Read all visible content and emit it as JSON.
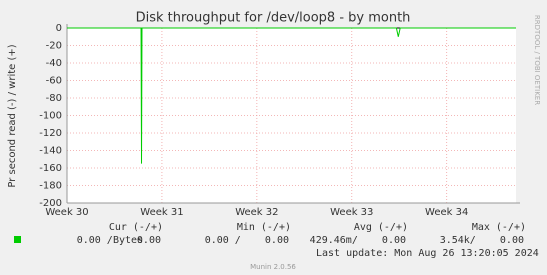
{
  "chart_data": {
    "type": "line",
    "title": "Disk throughput for /dev/loop8 - by month",
    "y_label": "Pr second read (-) / write (+)",
    "side_text": "RRDTOOL / TOBI OETIKER",
    "x": [
      30,
      30.78,
      30.785,
      30.79,
      33.47,
      33.49,
      33.51,
      34.73
    ],
    "series": [
      {
        "name": "Bytes",
        "color": "#00cc00",
        "values": [
          0,
          0,
          -155,
          0,
          0,
          -10,
          0,
          0
        ]
      }
    ],
    "xlim": [
      30,
      34.73
    ],
    "xticks": [
      {
        "value": 30,
        "label": "Week 30"
      },
      {
        "value": 31,
        "label": "Week 31"
      },
      {
        "value": 32,
        "label": "Week 32"
      },
      {
        "value": 33,
        "label": "Week 33"
      },
      {
        "value": 34,
        "label": "Week 34"
      }
    ],
    "ylim": [
      -200,
      0
    ],
    "yticks": [
      0,
      -20,
      -40,
      -60,
      -80,
      -100,
      -120,
      -140,
      -160,
      -180,
      -200
    ],
    "grid": true,
    "legend_table": {
      "headers": [
        "Cur (-/+)",
        "Min (-/+)",
        "Avg (-/+)",
        "Max (-/+)"
      ],
      "cells": [
        "0.00 /    0.00",
        "0.00 /    0.00",
        "429.46m/    0.00",
        "3.54k/    0.00"
      ]
    },
    "last_update": "Last update: Mon Aug 26 13:20:05 2024",
    "footer": "Munin 2.0.56"
  }
}
